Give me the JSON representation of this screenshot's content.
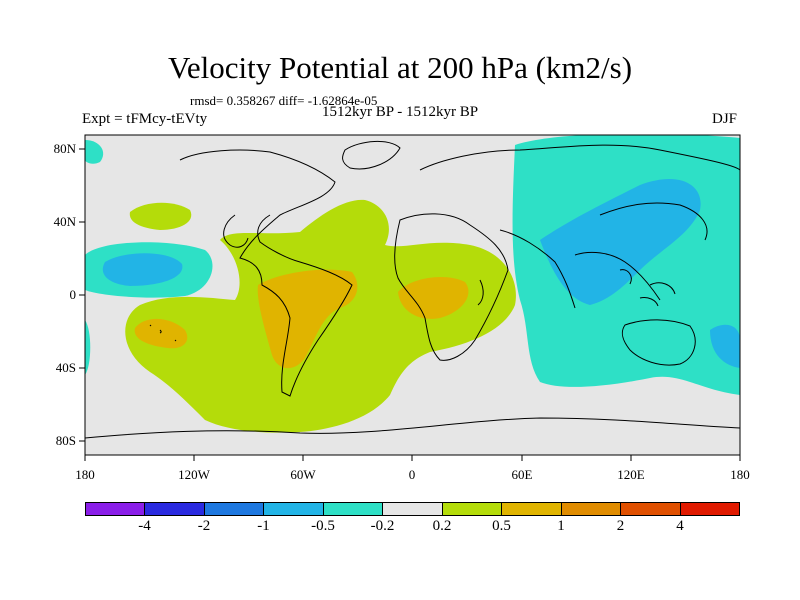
{
  "title": "Velocity Potential at 200 hPa (km2/s)",
  "stats": "rmsd= 0.358267 diff= -1.62864e-05",
  "experiment": "Expt = tFMcy-tEVty",
  "period": "1512kyr BP - 1512kyr BP",
  "season": "DJF",
  "lon_labels": [
    "180",
    "120W",
    "60W",
    "0",
    "60E",
    "120E",
    "180"
  ],
  "lat_labels": [
    "80N",
    "40N",
    "0",
    "40S",
    "80S"
  ],
  "colorbar": {
    "labels": [
      "-4",
      "-2",
      "-1",
      "-0.5",
      "-0.2",
      "0.2",
      "0.5",
      "1",
      "2",
      "4"
    ],
    "colors": [
      "#8a1ee8",
      "#2a2ae0",
      "#1e78e0",
      "#22b4e6",
      "#2ee0c6",
      "#e6e6e6",
      "#b4dc0a",
      "#e0b400",
      "#e08c00",
      "#e05000",
      "#e01a00"
    ]
  }
}
